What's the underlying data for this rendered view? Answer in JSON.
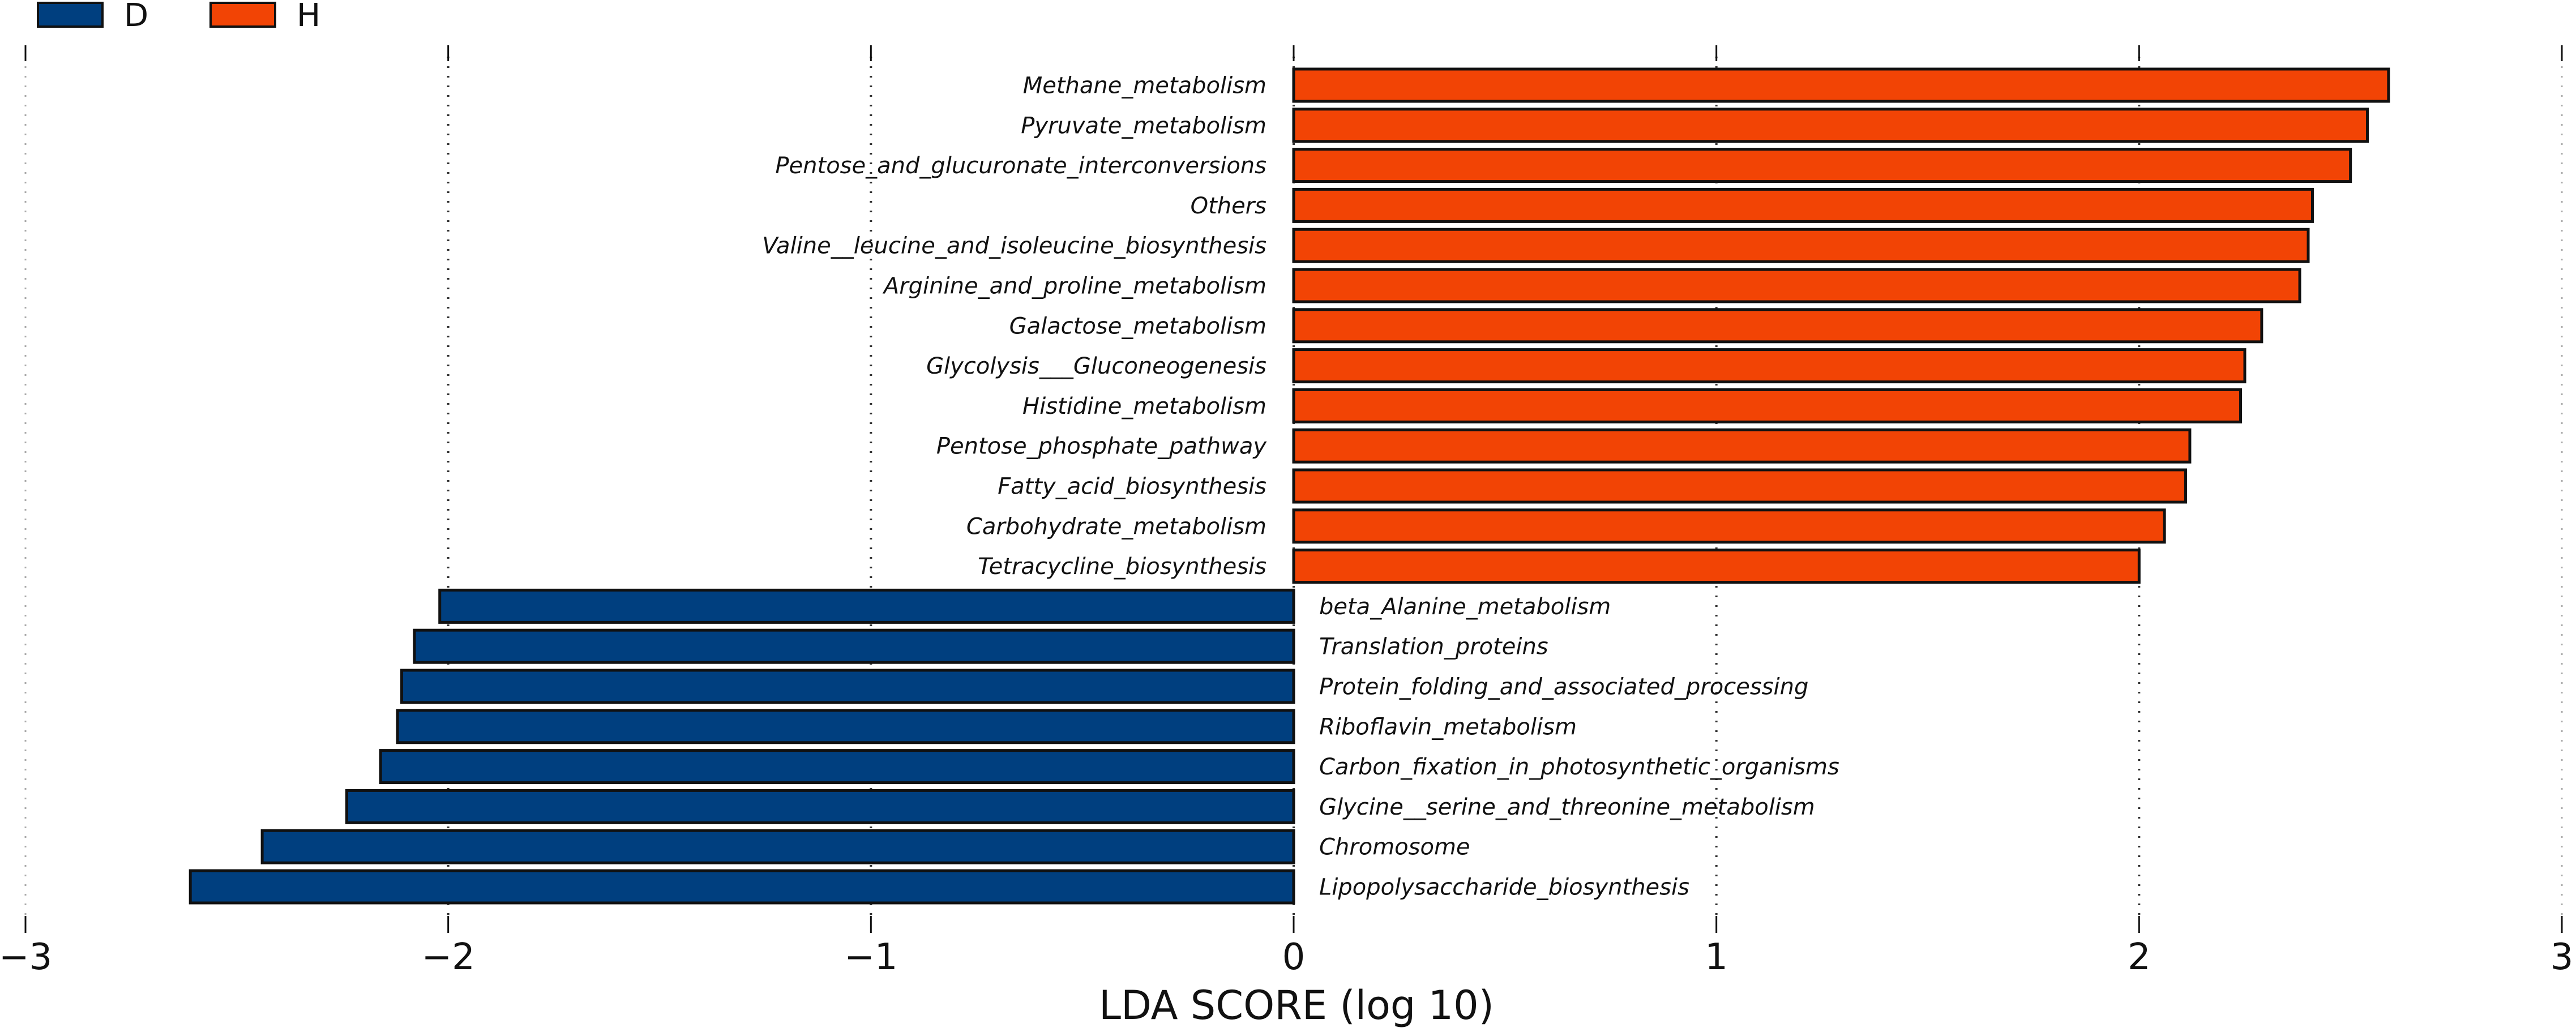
{
  "chart_data": {
    "type": "bar",
    "orientation": "horizontal",
    "title": "",
    "xlabel": "LDA SCORE (log 10)",
    "ylabel": "",
    "xlim": [
      -3,
      3
    ],
    "xticks": [
      -3,
      -2,
      -1,
      0,
      1,
      2,
      3
    ],
    "xtick_labels": [
      "−3",
      "−2",
      "−1",
      "0",
      "1",
      "2",
      "3"
    ],
    "grid": "vertical dotted",
    "legend_position": "top-left",
    "legend": [
      {
        "name": "D",
        "color": "#003f7f"
      },
      {
        "name": "H",
        "color": "#f24405"
      }
    ],
    "categories": [
      "Methane_metabolism",
      "Pyruvate_metabolism",
      "Pentose_and_glucuronate_interconversions",
      "Others",
      "Valine__leucine_and_isoleucine_biosynthesis",
      "Arginine_and_proline_metabolism",
      "Galactose_metabolism",
      "Glycolysis___Gluconeogenesis",
      "Histidine_metabolism",
      "Pentose_phosphate_pathway",
      "Fatty_acid_biosynthesis",
      "Carbohydrate_metabolism",
      "Tetracycline_biosynthesis",
      "beta_Alanine_metabolism",
      "Translation_proteins",
      "Protein_folding_and_associated_processing",
      "Riboflavin_metabolism",
      "Carbon_fixation_in_photosynthetic_organisms",
      "Glycine__serine_and_threonine_metabolism",
      "Chromosome",
      "Lipopolysaccharide_biosynthesis"
    ],
    "values": [
      2.59,
      2.54,
      2.5,
      2.41,
      2.4,
      2.38,
      2.29,
      2.25,
      2.24,
      2.12,
      2.11,
      2.06,
      2.0,
      -2.02,
      -2.08,
      -2.11,
      -2.12,
      -2.16,
      -2.24,
      -2.44,
      -2.61
    ],
    "groups": [
      "H",
      "H",
      "H",
      "H",
      "H",
      "H",
      "H",
      "H",
      "H",
      "H",
      "H",
      "H",
      "H",
      "D",
      "D",
      "D",
      "D",
      "D",
      "D",
      "D",
      "D"
    ]
  }
}
